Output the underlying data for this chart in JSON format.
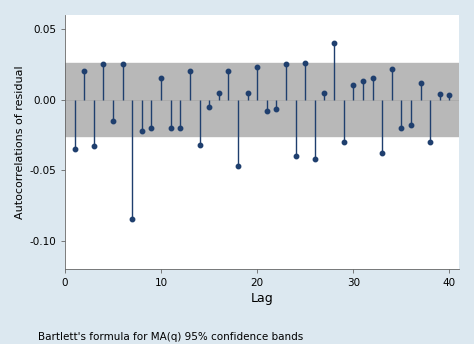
{
  "lags": [
    1,
    2,
    3,
    4,
    5,
    6,
    7,
    8,
    9,
    10,
    11,
    12,
    13,
    14,
    15,
    16,
    17,
    18,
    19,
    20,
    21,
    22,
    23,
    24,
    25,
    26,
    27,
    28,
    29,
    30,
    31,
    32,
    33,
    34,
    35,
    36,
    37,
    38,
    39,
    40
  ],
  "acf_values": [
    -0.035,
    0.02,
    -0.033,
    0.025,
    -0.015,
    0.025,
    -0.085,
    -0.022,
    -0.02,
    0.015,
    -0.02,
    -0.02,
    0.02,
    -0.032,
    -0.005,
    0.005,
    0.02,
    -0.047,
    0.005,
    0.023,
    -0.008,
    -0.007,
    0.025,
    -0.04,
    0.026,
    -0.042,
    0.005,
    0.04,
    -0.03,
    0.01,
    0.013,
    0.015,
    -0.038,
    0.022,
    -0.02,
    -0.018,
    0.012,
    -0.03,
    0.004,
    0.003
  ],
  "conf_upper": 0.026,
  "conf_lower": -0.026,
  "xlim": [
    0,
    41
  ],
  "ylim": [
    -0.12,
    0.06
  ],
  "yticks": [
    0.05,
    0.0,
    -0.05,
    -0.1
  ],
  "ytick_labels": [
    "0.05",
    "0.00",
    "-0.05",
    "-0.10"
  ],
  "xticks": [
    0,
    10,
    20,
    30,
    40
  ],
  "xlabel": "Lag",
  "ylabel": "Autocorrelations of residual",
  "footnote": "Bartlett's formula for MA(q) 95% confidence bands",
  "stem_color": "#1f3f6e",
  "marker_color": "#1f3f6e",
  "band_color": "#b8b8b8",
  "figure_bg": "#dce8f0",
  "axes_bg": "#ffffff",
  "figsize": [
    4.74,
    3.44
  ],
  "dpi": 100,
  "zero_line_color": "#aaaaaa",
  "tick_fontsize": 7.5,
  "label_fontsize": 8,
  "xlabel_fontsize": 9,
  "footnote_fontsize": 7.5
}
